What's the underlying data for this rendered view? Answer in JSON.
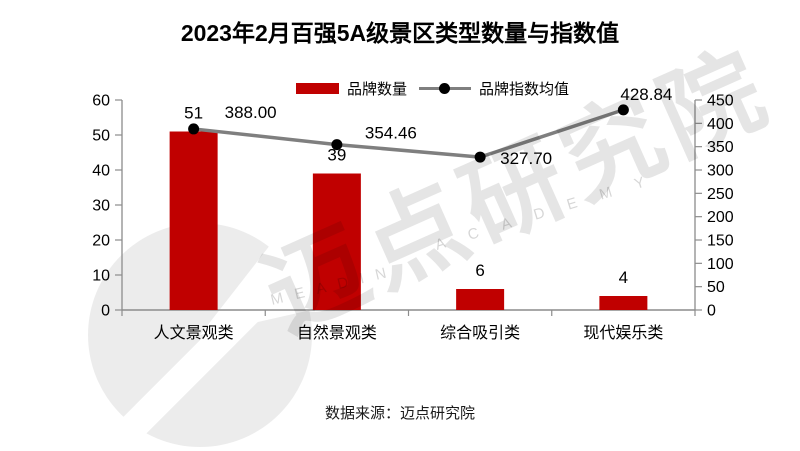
{
  "title": "2023年2月百强5A级景区类型数量与指数值",
  "source": "数据来源：迈点研究院",
  "watermark": {
    "cn": "迈点研究院",
    "en_word1": "MEADIN",
    "en_word2": "ACADEMY"
  },
  "legend": [
    {
      "label": "品牌数量",
      "swatch": "bar-swatch",
      "color": "#c00000"
    },
    {
      "label": "品牌指数均值",
      "swatch": "line-swatch",
      "color": "#7f7f7f",
      "marker_color": "#000000"
    }
  ],
  "chart_data": {
    "type": "bar",
    "title": "2023年2月百强5A级景区类型数量与指数值",
    "categories": [
      "人文景观类",
      "自然景观类",
      "综合吸引类",
      "现代娱乐类"
    ],
    "series": [
      {
        "name": "品牌数量",
        "type": "bar",
        "axis": "left",
        "color": "#c00000",
        "values": [
          51,
          39,
          6,
          4
        ],
        "labels": [
          "51",
          "39",
          "6",
          "4"
        ]
      },
      {
        "name": "品牌指数均值",
        "type": "line",
        "axis": "right",
        "color": "#7f7f7f",
        "marker_color": "#000000",
        "values": [
          388.0,
          354.46,
          327.7,
          428.84
        ],
        "labels": [
          "388.00",
          "354.46",
          "327.70",
          "428.84"
        ]
      }
    ],
    "left_axis": {
      "min": 0,
      "max": 60,
      "step": 10,
      "ticks": [
        "0",
        "10",
        "20",
        "30",
        "40",
        "50",
        "60"
      ]
    },
    "right_axis": {
      "min": 0,
      "max": 450,
      "step": 50,
      "ticks": [
        "0",
        "50",
        "100",
        "150",
        "200",
        "250",
        "300",
        "350",
        "400",
        "450"
      ]
    },
    "axis_color": "#8c8c8c",
    "label_color": "#000000",
    "grid": false,
    "legend_position": "top",
    "xlabel": "",
    "ylabel": ""
  }
}
